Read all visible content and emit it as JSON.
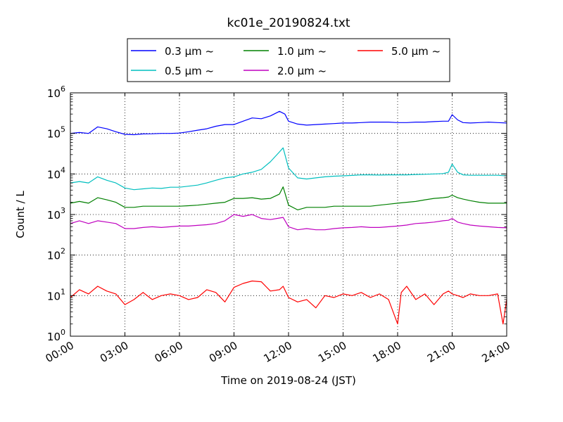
{
  "chart_data": {
    "type": "line",
    "title": "kc01e_20190824.txt",
    "xlabel": "Time on 2019-08-24 (JST)",
    "ylabel": "Count / L",
    "y_scale": "log",
    "ylim_exponents": [
      0,
      6
    ],
    "y_tick_base": "10",
    "y_tick_exponents": [
      "0",
      "1",
      "2",
      "3",
      "4",
      "5",
      "6"
    ],
    "xlim_hours": [
      0,
      24
    ],
    "x_tick_labels": [
      "00:00",
      "03:00",
      "06:00",
      "09:00",
      "12:00",
      "15:00",
      "18:00",
      "21:00",
      "24:00"
    ],
    "grid": true,
    "legend_position": "top-center",
    "legend_suffix": "~",
    "series": [
      {
        "name": "0.3 μm",
        "color": "#0000ff",
        "x": [
          0,
          0.5,
          1,
          1.5,
          2,
          2.5,
          3,
          3.5,
          4,
          4.5,
          5,
          5.5,
          6,
          6.5,
          7,
          7.5,
          8,
          8.5,
          9,
          9.5,
          10,
          10.5,
          11,
          11.5,
          11.8,
          12,
          12.5,
          13,
          13.5,
          14,
          14.5,
          15,
          15.5,
          16,
          16.5,
          17,
          17.5,
          18,
          18.5,
          19,
          19.5,
          20,
          20.5,
          20.8,
          21,
          21.3,
          21.6,
          22,
          22.5,
          23,
          23.5,
          24
        ],
        "y": [
          100000,
          105000,
          100000,
          145000,
          130000,
          110000,
          95000,
          93000,
          97000,
          98000,
          100000,
          100000,
          102000,
          110000,
          120000,
          130000,
          150000,
          165000,
          165000,
          200000,
          240000,
          230000,
          270000,
          350000,
          300000,
          200000,
          170000,
          160000,
          165000,
          170000,
          175000,
          180000,
          180000,
          185000,
          190000,
          190000,
          190000,
          185000,
          185000,
          190000,
          190000,
          195000,
          200000,
          200000,
          290000,
          215000,
          185000,
          180000,
          185000,
          190000,
          185000,
          180000
        ]
      },
      {
        "name": "0.5 μm",
        "color": "#00bfbf",
        "x": [
          0,
          0.5,
          1,
          1.5,
          2,
          2.5,
          3,
          3.5,
          4,
          4.5,
          5,
          5.5,
          6,
          6.5,
          7,
          7.5,
          8,
          8.5,
          9,
          9.5,
          10,
          10.5,
          11,
          11.5,
          11.7,
          12,
          12.5,
          13,
          13.5,
          14,
          14.5,
          15,
          15.5,
          16,
          16.5,
          17,
          17.5,
          18,
          18.5,
          19,
          19.5,
          20,
          20.5,
          20.8,
          21,
          21.3,
          21.6,
          22,
          22.5,
          23,
          23.5,
          24
        ],
        "y": [
          6000,
          6500,
          6000,
          8500,
          7000,
          6000,
          4500,
          4100,
          4300,
          4500,
          4400,
          4700,
          4700,
          5000,
          5300,
          6000,
          7000,
          8000,
          8500,
          10000,
          11000,
          13000,
          20000,
          35000,
          44000,
          14000,
          8000,
          7500,
          8000,
          8500,
          8800,
          9000,
          9200,
          9500,
          9500,
          9400,
          9500,
          9500,
          9500,
          9700,
          9800,
          10000,
          10200,
          11000,
          17500,
          11000,
          9500,
          9300,
          9300,
          9300,
          9300,
          9000
        ]
      },
      {
        "name": "1.0 μm",
        "color": "#008000",
        "x": [
          0,
          0.5,
          1,
          1.5,
          2,
          2.5,
          3,
          3.5,
          4,
          4.5,
          5,
          5.5,
          6,
          6.5,
          7,
          7.5,
          8,
          8.5,
          9,
          9.5,
          10,
          10.5,
          11,
          11.5,
          11.7,
          12,
          12.5,
          13,
          13.5,
          14,
          14.5,
          15,
          15.5,
          16,
          16.5,
          17,
          17.5,
          18,
          18.5,
          19,
          19.5,
          20,
          20.5,
          20.8,
          21,
          21.3,
          21.6,
          22,
          22.5,
          23,
          23.5,
          24
        ],
        "y": [
          1900,
          2100,
          1900,
          2600,
          2300,
          2000,
          1500,
          1500,
          1600,
          1600,
          1600,
          1600,
          1600,
          1650,
          1700,
          1800,
          1900,
          2000,
          2500,
          2500,
          2600,
          2400,
          2500,
          3200,
          4800,
          1700,
          1300,
          1500,
          1500,
          1500,
          1600,
          1600,
          1600,
          1600,
          1600,
          1700,
          1800,
          1900,
          2000,
          2100,
          2300,
          2500,
          2600,
          2700,
          3000,
          2600,
          2400,
          2200,
          2000,
          1900,
          1900,
          1900
        ]
      },
      {
        "name": "2.0 μm",
        "color": "#bf00bf",
        "x": [
          0,
          0.5,
          1,
          1.5,
          2,
          2.5,
          3,
          3.5,
          4,
          4.5,
          5,
          5.5,
          6,
          6.5,
          7,
          7.5,
          8,
          8.5,
          9,
          9.5,
          10,
          10.5,
          11,
          11.5,
          11.7,
          12,
          12.5,
          13,
          13.5,
          14,
          14.5,
          15,
          15.5,
          16,
          16.5,
          17,
          17.5,
          18,
          18.5,
          19,
          19.5,
          20,
          20.5,
          20.8,
          21,
          21.3,
          21.6,
          22,
          22.5,
          23,
          23.5,
          24
        ],
        "y": [
          600,
          700,
          600,
          700,
          650,
          600,
          450,
          450,
          480,
          500,
          480,
          500,
          520,
          520,
          540,
          560,
          600,
          700,
          1000,
          900,
          1000,
          800,
          750,
          820,
          850,
          500,
          420,
          450,
          420,
          420,
          450,
          470,
          480,
          500,
          480,
          480,
          500,
          520,
          550,
          600,
          620,
          650,
          700,
          720,
          800,
          650,
          600,
          550,
          520,
          500,
          480,
          470
        ]
      },
      {
        "name": "5.0 μm",
        "color": "#ff0000",
        "x": [
          0,
          0.5,
          1,
          1.5,
          2,
          2.5,
          3,
          3.5,
          4,
          4.5,
          5,
          5.5,
          6,
          6.5,
          7,
          7.5,
          8,
          8.5,
          9,
          9.5,
          10,
          10.5,
          11,
          11.5,
          11.7,
          12,
          12.5,
          13,
          13.5,
          14,
          14.5,
          15,
          15.5,
          16,
          16.5,
          17,
          17.5,
          18,
          18.2,
          18.5,
          19,
          19.5,
          20,
          20.5,
          20.8,
          21,
          21.3,
          21.6,
          22,
          22.5,
          23,
          23.5,
          23.8,
          24
        ],
        "y": [
          9,
          14,
          11,
          17,
          13,
          11,
          6,
          8,
          12,
          8,
          10,
          11,
          10,
          8,
          9,
          14,
          12,
          7,
          16,
          20,
          23,
          22,
          13,
          14,
          17,
          9,
          7,
          8,
          5,
          10,
          9,
          11,
          10,
          12,
          9,
          11,
          8,
          2,
          12,
          17,
          8,
          11,
          6,
          11,
          13,
          11,
          10,
          9,
          11,
          10,
          10,
          11,
          2,
          8
        ]
      }
    ]
  }
}
